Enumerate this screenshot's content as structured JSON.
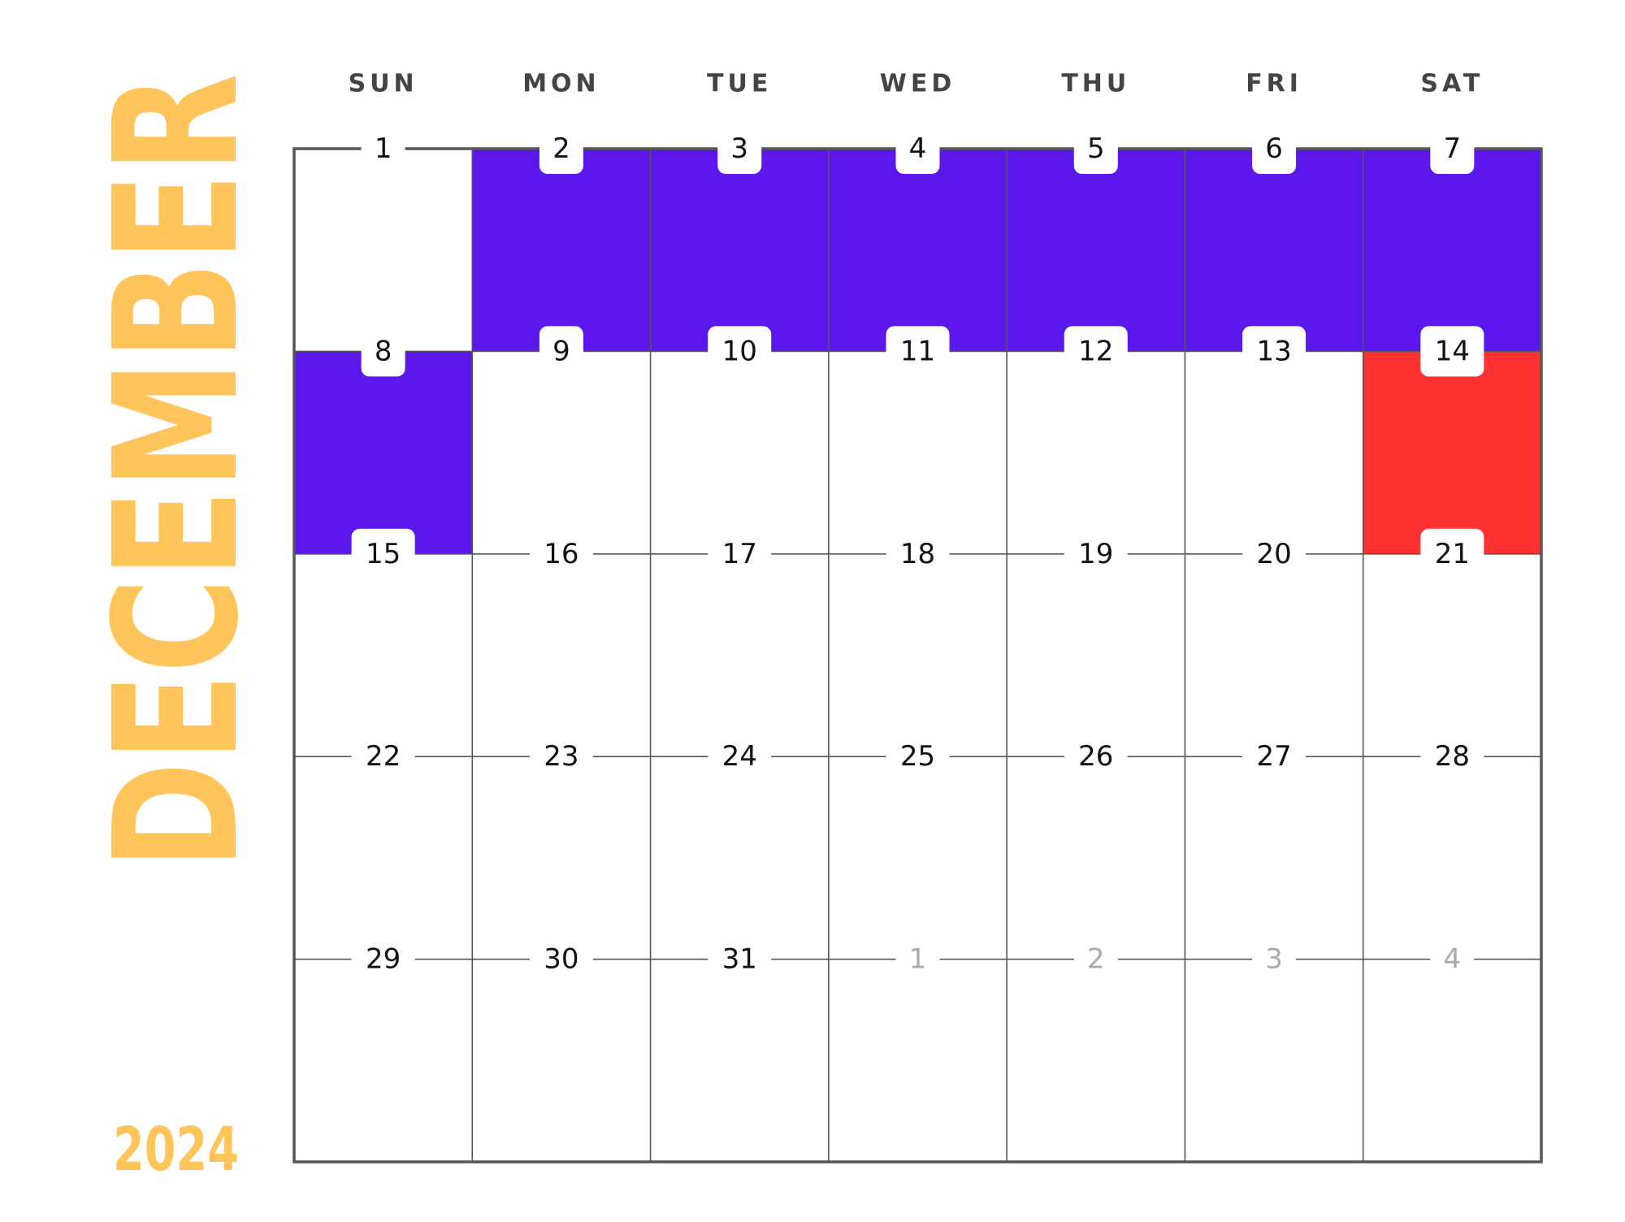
{
  "calendar": {
    "month": "DECEMBER",
    "year": "2024",
    "weekdays": [
      "SUN",
      "MON",
      "TUE",
      "WED",
      "THU",
      "FRI",
      "SAT"
    ],
    "title_color": "#ffc45a",
    "weeks": [
      [
        {
          "label": "1"
        },
        {
          "label": "2",
          "fill": "#5c17ec"
        },
        {
          "label": "3",
          "fill": "#5c17ec"
        },
        {
          "label": "4",
          "fill": "#5c17ec"
        },
        {
          "label": "5",
          "fill": "#5c17ec"
        },
        {
          "label": "6",
          "fill": "#5c17ec"
        },
        {
          "label": "7",
          "fill": "#5c17ec"
        }
      ],
      [
        {
          "label": "8",
          "fill": "#5c17ec"
        },
        {
          "label": "9"
        },
        {
          "label": "10"
        },
        {
          "label": "11"
        },
        {
          "label": "12"
        },
        {
          "label": "13"
        },
        {
          "label": "14",
          "fill": "#ff3333"
        }
      ],
      [
        {
          "label": "15"
        },
        {
          "label": "16"
        },
        {
          "label": "17"
        },
        {
          "label": "18"
        },
        {
          "label": "19"
        },
        {
          "label": "20"
        },
        {
          "label": "21"
        }
      ],
      [
        {
          "label": "22"
        },
        {
          "label": "23"
        },
        {
          "label": "24"
        },
        {
          "label": "25"
        },
        {
          "label": "26"
        },
        {
          "label": "27"
        },
        {
          "label": "28"
        }
      ],
      [
        {
          "label": "29"
        },
        {
          "label": "30"
        },
        {
          "label": "31"
        },
        {
          "label": "1",
          "muted": true
        },
        {
          "label": "2",
          "muted": true
        },
        {
          "label": "3",
          "muted": true
        },
        {
          "label": "4",
          "muted": true
        }
      ]
    ]
  }
}
